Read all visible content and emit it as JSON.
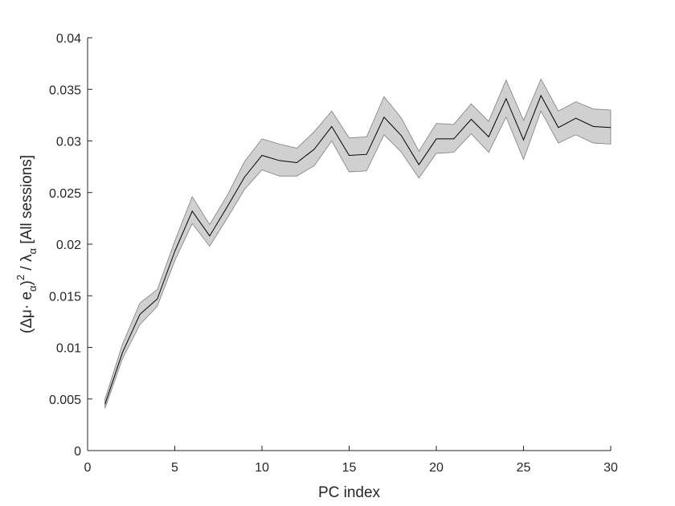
{
  "chart_data": {
    "type": "line",
    "title": "",
    "xlabel": "PC index",
    "ylabel": {
      "open": "(Δμ· e",
      "sub1": "α",
      "close": ")",
      "sup": "2",
      "divide": " / λ",
      "sub2": "α",
      "suffix": " [All sessions]"
    },
    "xlim": [
      0,
      30
    ],
    "ylim": [
      0,
      0.04
    ],
    "xticks": [
      0,
      5,
      10,
      15,
      20,
      25,
      30
    ],
    "yticks": [
      0,
      0.005,
      0.01,
      0.015,
      0.02,
      0.025,
      0.03,
      0.035,
      0.04
    ],
    "xtick_labels": [
      "0",
      "5",
      "10",
      "15",
      "20",
      "25",
      "30"
    ],
    "ytick_labels": [
      "0",
      "0.005",
      "0.01",
      "0.015",
      "0.02",
      "0.025",
      "0.03",
      "0.035",
      "0.04"
    ],
    "grid": false,
    "line_color": "#000000",
    "band_color": "#d0d0d0",
    "band_edge_color": "#7f7f7f",
    "series": [
      {
        "x": [
          1,
          2,
          3,
          4,
          5,
          6,
          7,
          8,
          9,
          10,
          11,
          12,
          13,
          14,
          15,
          16,
          17,
          18,
          19,
          20,
          21,
          22,
          23,
          24,
          25,
          26,
          27,
          28,
          29,
          30
        ],
        "values": [
          0.0045,
          0.0095,
          0.0132,
          0.0147,
          0.0193,
          0.0232,
          0.0208,
          0.0236,
          0.0265,
          0.0286,
          0.0281,
          0.0279,
          0.0292,
          0.0314,
          0.0286,
          0.0287,
          0.0323,
          0.0305,
          0.0277,
          0.0302,
          0.0302,
          0.0321,
          0.0304,
          0.0341,
          0.0301,
          0.0344,
          0.0313,
          0.0322,
          0.0314,
          0.0313
        ],
        "lower": [
          0.0041,
          0.0089,
          0.0122,
          0.014,
          0.0184,
          0.022,
          0.0198,
          0.0225,
          0.0253,
          0.0272,
          0.0266,
          0.0266,
          0.0276,
          0.03,
          0.027,
          0.0271,
          0.0306,
          0.0289,
          0.0264,
          0.0288,
          0.0289,
          0.0307,
          0.0289,
          0.0323,
          0.0282,
          0.0329,
          0.0298,
          0.0306,
          0.0298,
          0.0297
        ],
        "upper": [
          0.005,
          0.0103,
          0.0143,
          0.0156,
          0.0203,
          0.0246,
          0.0219,
          0.0247,
          0.028,
          0.0302,
          0.0297,
          0.0293,
          0.0309,
          0.0329,
          0.0303,
          0.0304,
          0.0343,
          0.0322,
          0.029,
          0.0317,
          0.0316,
          0.0336,
          0.0319,
          0.0359,
          0.032,
          0.036,
          0.0329,
          0.0338,
          0.0331,
          0.033
        ]
      }
    ]
  }
}
